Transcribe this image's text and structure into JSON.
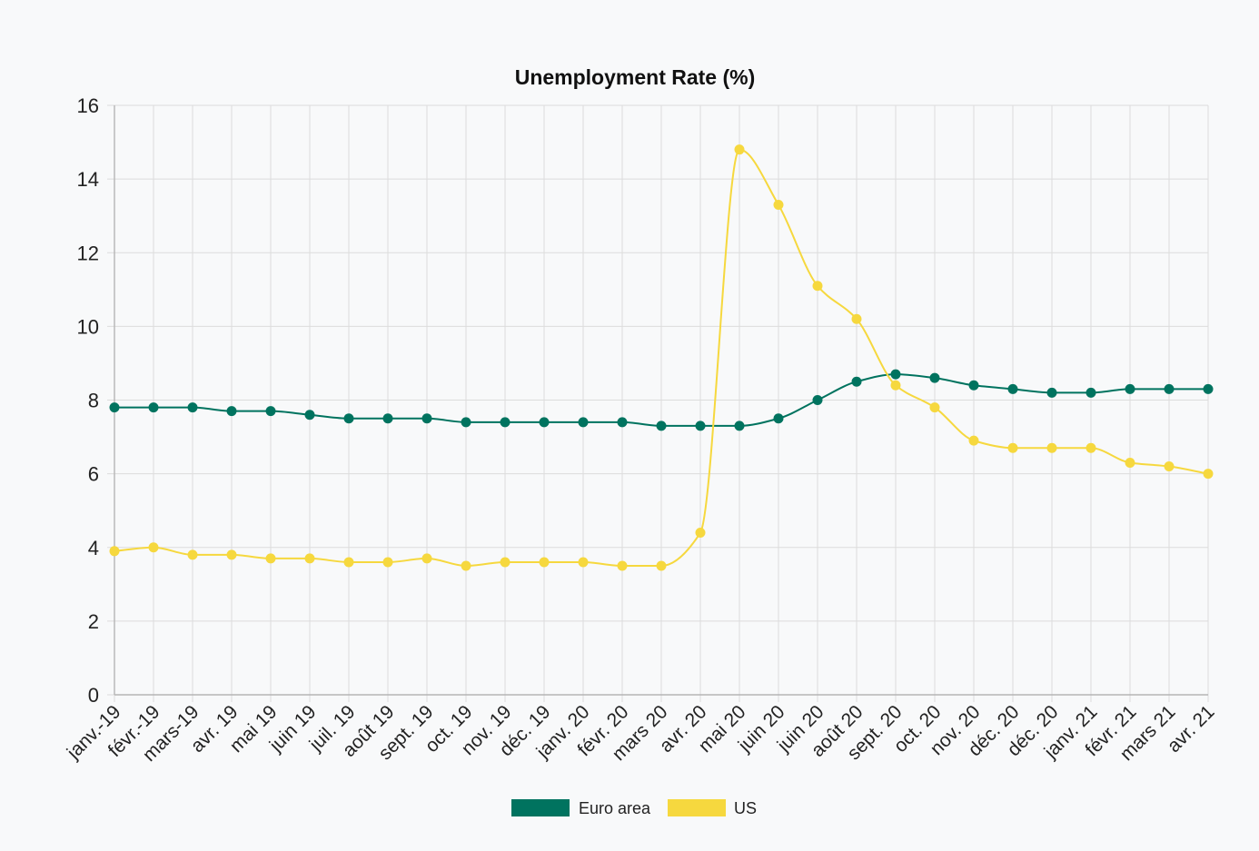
{
  "chart_data": {
    "type": "line",
    "title": "Unemployment Rate (%)",
    "xlabel": "",
    "ylabel": "",
    "ylim": [
      0,
      16
    ],
    "y_ticks": [
      0,
      2,
      4,
      6,
      8,
      10,
      12,
      14,
      16
    ],
    "grid": true,
    "legend_position": "bottom",
    "categories": [
      "janv.-19",
      "févr.-19",
      "mars-19",
      "avr. 19",
      "mai 19",
      "juin 19",
      "juil. 19",
      "août 19",
      "sept. 19",
      "oct. 19",
      "nov. 19",
      "déc. 19",
      "janv. 20",
      "févr. 20",
      "mars 20",
      "avr. 20",
      "mai 20",
      "juin 20",
      "juin 20",
      "août 20",
      "sept. 20",
      "oct. 20",
      "nov. 20",
      "déc. 20",
      "déc. 20",
      "janv. 21",
      "févr. 21",
      "mars 21",
      "avr. 21"
    ],
    "series": [
      {
        "name": "Euro area",
        "color": "#00735f",
        "values": [
          7.8,
          7.8,
          7.8,
          7.7,
          7.7,
          7.6,
          7.5,
          7.5,
          7.5,
          7.4,
          7.4,
          7.4,
          7.4,
          7.4,
          7.3,
          7.3,
          7.3,
          7.5,
          8.0,
          8.5,
          8.7,
          8.6,
          8.4,
          8.3,
          8.2,
          8.2,
          8.3,
          8.3,
          8.3
        ]
      },
      {
        "name": "US",
        "color": "#f6d83e",
        "values": [
          3.9,
          4.0,
          3.8,
          3.8,
          3.7,
          3.7,
          3.6,
          3.6,
          3.7,
          3.5,
          3.6,
          3.6,
          3.6,
          3.5,
          3.5,
          4.4,
          14.8,
          13.3,
          11.1,
          10.2,
          8.4,
          7.8,
          6.9,
          6.7,
          6.7,
          6.7,
          6.3,
          6.2,
          6.0
        ]
      }
    ]
  }
}
